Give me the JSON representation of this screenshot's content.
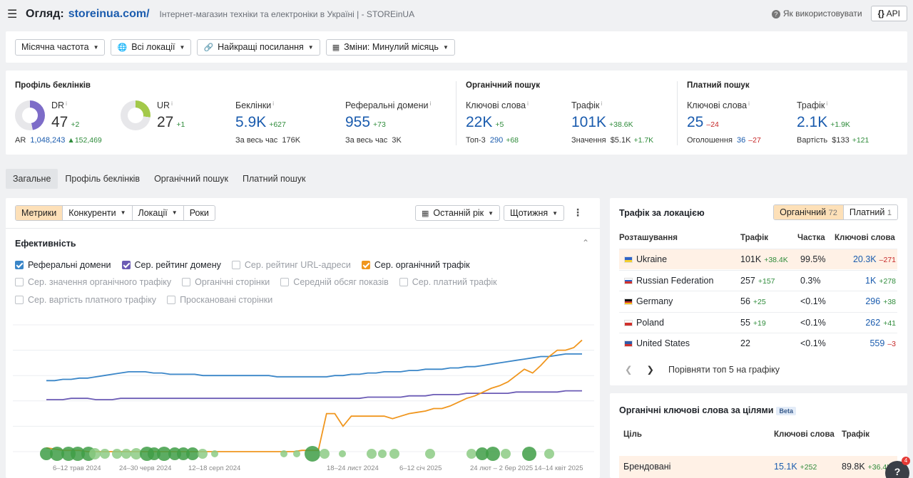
{
  "header": {
    "title_prefix": "Огляд:",
    "domain": "storeinua.com/",
    "subtitle": "Інтернет-магазин техніки та електроніки в Україні | - STOREinUA",
    "help_label": "Як використовувати",
    "api_label": "API"
  },
  "filters": {
    "frequency": "Місячна частота",
    "locations": "Всі локації",
    "links": "Найкращі посилання",
    "changes": "Зміни: Минулий місяць"
  },
  "profile": {
    "title": "Профіль беклінків",
    "dr": {
      "label": "DR",
      "value": "47",
      "delta": "+2"
    },
    "ur": {
      "label": "UR",
      "value": "27",
      "delta": "+1"
    },
    "ar": {
      "label": "AR",
      "value": "1,048,243",
      "delta": "152,469"
    },
    "backlinks": {
      "label": "Беклінки",
      "value": "5.9K",
      "delta": "+627",
      "sub_label": "За весь час",
      "sub_value": "176K"
    },
    "refdomains": {
      "label": "Реферальні домени",
      "value": "955",
      "delta": "+73",
      "sub_label": "За весь час",
      "sub_value": "3K"
    }
  },
  "organic": {
    "title": "Органічний пошук",
    "keywords": {
      "label": "Ключові слова",
      "value": "22K",
      "delta": "+5",
      "sub_label": "Топ-3",
      "sub_value": "290",
      "sub_delta": "+68"
    },
    "traffic": {
      "label": "Трафік",
      "value": "101K",
      "delta": "+38.6K",
      "sub_label": "Значення",
      "sub_value": "$5.1K",
      "sub_delta": "+1.7K"
    }
  },
  "paid": {
    "title": "Платний пошук",
    "keywords": {
      "label": "Ключові слова",
      "value": "25",
      "delta": "–24",
      "sub_label": "Оголошення",
      "sub_value": "36",
      "sub_delta": "–27"
    },
    "traffic": {
      "label": "Трафік",
      "value": "2.1K",
      "delta": "+1.9K",
      "sub_label": "Вартість",
      "sub_value": "$133",
      "sub_delta": "+121"
    }
  },
  "tabs": [
    "Загальне",
    "Профіль беклінків",
    "Органічний пошук",
    "Платний пошук"
  ],
  "chart_panel": {
    "segments": [
      "Метрики",
      "Конкуренти",
      "Локації",
      "Роки"
    ],
    "period": "Останній рік",
    "interval": "Щотижня",
    "section_title": "Ефективність",
    "checkboxes": [
      {
        "label": "Реферальні домени",
        "checked": true,
        "color": "#3a86c8"
      },
      {
        "label": "Сер. рейтинг домену",
        "checked": true,
        "color": "#6b5bb5"
      },
      {
        "label": "Сер. рейтинг URL-адреси",
        "checked": false
      },
      {
        "label": "Сер. органічний трафік",
        "checked": true,
        "color": "#f0961e"
      },
      {
        "label": "Сер. значення органічного трафіку",
        "checked": false
      },
      {
        "label": "Органічні сторінки",
        "checked": false
      },
      {
        "label": "Середній обсяг показів",
        "checked": false
      },
      {
        "label": "Сер. платний трафік",
        "checked": false
      },
      {
        "label": "Сер. вартість платного трафіку",
        "checked": false
      },
      {
        "label": "Проскановані сторінки",
        "checked": false
      }
    ]
  },
  "chart_data": {
    "type": "line",
    "title": "Ефективність",
    "x_labels": [
      "6–12 трав 2024",
      "24–30 черв 2024",
      "12–18 серп 2024",
      "18–24 лист 2024",
      "6–12 січ 2025",
      "24 лют – 2 бер 2025",
      "14–14 квіт 2025"
    ],
    "series": [
      {
        "name": "Реферальні домени",
        "color": "#3a86c8",
        "values": [
          56,
          56,
          57,
          57,
          58,
          58,
          59,
          60,
          61,
          62,
          63,
          63,
          63,
          62,
          62,
          61,
          61,
          61,
          61,
          60,
          60,
          60,
          60,
          60,
          60,
          60,
          60,
          60,
          59,
          59,
          59,
          59,
          59,
          59,
          59,
          60,
          60,
          61,
          61,
          62,
          62,
          63,
          63,
          63,
          64,
          64,
          65,
          65,
          65,
          66,
          66,
          67,
          67,
          68,
          69,
          70,
          71,
          72,
          73,
          74,
          75,
          75,
          76,
          77,
          77,
          77
        ]
      },
      {
        "name": "Сер. рейтинг домену",
        "color": "#6b5bb5",
        "values": [
          41,
          41,
          41,
          42,
          42,
          42,
          41,
          41,
          41,
          42,
          42,
          42,
          42,
          42,
          42,
          42,
          42,
          42,
          42,
          42,
          42,
          42,
          42,
          42,
          42,
          42,
          42,
          42,
          42,
          42,
          42,
          42,
          42,
          42,
          42,
          42,
          42,
          42,
          42,
          43,
          43,
          43,
          43,
          43,
          44,
          44,
          44,
          45,
          45,
          45,
          45,
          46,
          46,
          46,
          46,
          46,
          46,
          47,
          47,
          47,
          47,
          47,
          47,
          48,
          48,
          48
        ]
      },
      {
        "name": "Сер. органічний трафік",
        "color": "#f0961e",
        "values": [
          3,
          2,
          1,
          1,
          1,
          0,
          0,
          0,
          0,
          0,
          0,
          0,
          0,
          0,
          0,
          0,
          0,
          0,
          0,
          0,
          0,
          0,
          0,
          0,
          0,
          0,
          0,
          0,
          0,
          0,
          0,
          1,
          1,
          1,
          30,
          30,
          20,
          28,
          28,
          28,
          28,
          28,
          26,
          28,
          30,
          31,
          32,
          34,
          34,
          36,
          39,
          42,
          44,
          47,
          50,
          52,
          55,
          60,
          65,
          62,
          68,
          75,
          80,
          80,
          82,
          88
        ]
      }
    ]
  },
  "locations": {
    "title": "Трафік за локацією",
    "organic_label": "Органічний",
    "organic_count": "72",
    "paid_label": "Платний",
    "paid_count": "1",
    "headers": {
      "location": "Розташування",
      "traffic": "Трафік",
      "share": "Частка",
      "keywords": "Ключові слова"
    },
    "rows": [
      {
        "country": "Ukraine",
        "traffic": "101K",
        "traffic_delta": "+38.4K",
        "share": "99.5%",
        "keywords": "20.3K",
        "kw_delta": "–271",
        "kw_delta_type": "loss"
      },
      {
        "country": "Russian Federation",
        "traffic": "257",
        "traffic_delta": "+157",
        "share": "0.3%",
        "keywords": "1K",
        "kw_delta": "+278",
        "kw_delta_type": "gain"
      },
      {
        "country": "Germany",
        "traffic": "56",
        "traffic_delta": "+25",
        "share": "<0.1%",
        "keywords": "296",
        "kw_delta": "+38",
        "kw_delta_type": "gain"
      },
      {
        "country": "Poland",
        "traffic": "55",
        "traffic_delta": "+19",
        "share": "<0.1%",
        "keywords": "262",
        "kw_delta": "+41",
        "kw_delta_type": "gain"
      },
      {
        "country": "United States",
        "traffic": "22",
        "traffic_delta": "",
        "share": "<0.1%",
        "keywords": "559",
        "kw_delta": "–3",
        "kw_delta_type": "loss"
      }
    ],
    "compare_label": "Порівняти топ 5 на графіку"
  },
  "intent_keywords": {
    "title": "Органічні ключові слова за цілями",
    "beta": "Beta",
    "headers": {
      "intent": "Ціль",
      "keywords": "Ключові слова",
      "traffic": "Трафік"
    },
    "rows": [
      {
        "intent": "Брендовані",
        "keywords": "15.1K",
        "kw_delta": "+252",
        "traffic": "89.8K",
        "traffic_delta": "+36.4K"
      }
    ]
  },
  "chat": {
    "label": "?",
    "badge": "4"
  }
}
